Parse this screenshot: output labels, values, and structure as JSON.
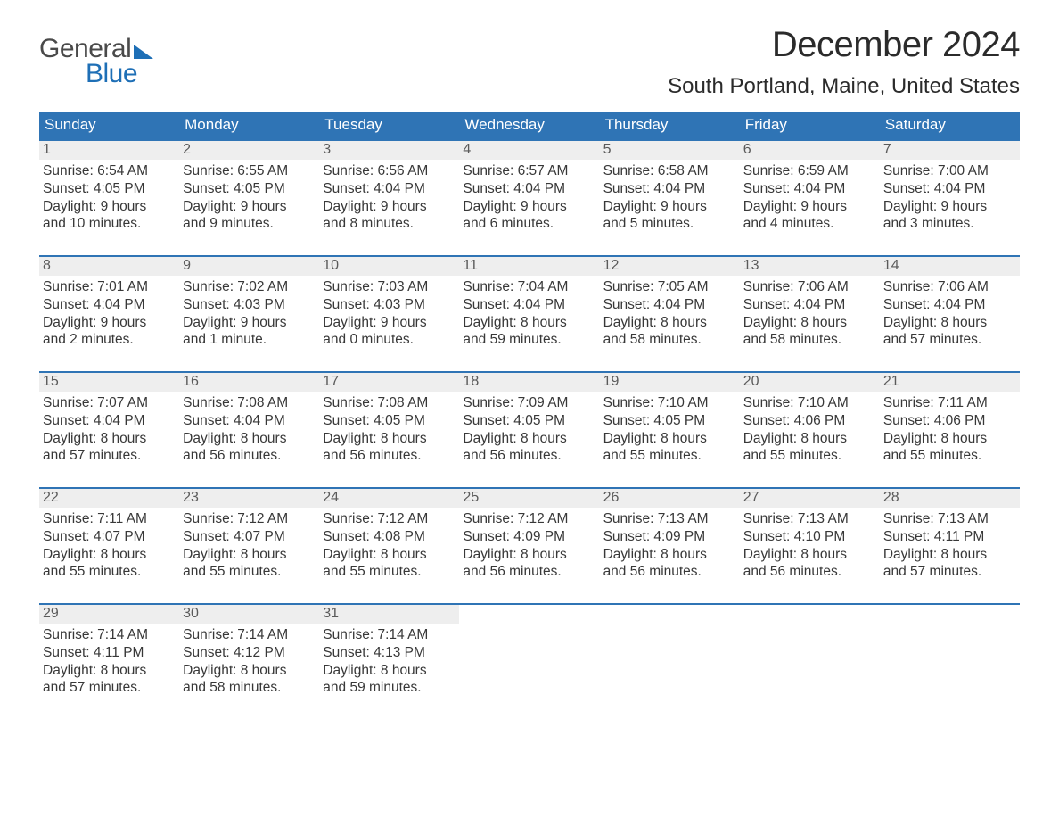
{
  "logo": {
    "word1": "General",
    "word2": "Blue"
  },
  "title": "December 2024",
  "location": "South Portland, Maine, United States",
  "colors": {
    "header_bg": "#2f74b5",
    "header_text": "#ffffff",
    "week_border": "#2f74b5",
    "daynum_bg": "#eeeeee",
    "body_text": "#383838",
    "logo_blue": "#1e6fb6"
  },
  "day_names": [
    "Sunday",
    "Monday",
    "Tuesday",
    "Wednesday",
    "Thursday",
    "Friday",
    "Saturday"
  ],
  "type": "table",
  "weeks": [
    [
      {
        "num": "1",
        "sunrise": "Sunrise: 6:54 AM",
        "sunset": "Sunset: 4:05 PM",
        "dl1": "Daylight: 9 hours",
        "dl2": "and 10 minutes."
      },
      {
        "num": "2",
        "sunrise": "Sunrise: 6:55 AM",
        "sunset": "Sunset: 4:05 PM",
        "dl1": "Daylight: 9 hours",
        "dl2": "and 9 minutes."
      },
      {
        "num": "3",
        "sunrise": "Sunrise: 6:56 AM",
        "sunset": "Sunset: 4:04 PM",
        "dl1": "Daylight: 9 hours",
        "dl2": "and 8 minutes."
      },
      {
        "num": "4",
        "sunrise": "Sunrise: 6:57 AM",
        "sunset": "Sunset: 4:04 PM",
        "dl1": "Daylight: 9 hours",
        "dl2": "and 6 minutes."
      },
      {
        "num": "5",
        "sunrise": "Sunrise: 6:58 AM",
        "sunset": "Sunset: 4:04 PM",
        "dl1": "Daylight: 9 hours",
        "dl2": "and 5 minutes."
      },
      {
        "num": "6",
        "sunrise": "Sunrise: 6:59 AM",
        "sunset": "Sunset: 4:04 PM",
        "dl1": "Daylight: 9 hours",
        "dl2": "and 4 minutes."
      },
      {
        "num": "7",
        "sunrise": "Sunrise: 7:00 AM",
        "sunset": "Sunset: 4:04 PM",
        "dl1": "Daylight: 9 hours",
        "dl2": "and 3 minutes."
      }
    ],
    [
      {
        "num": "8",
        "sunrise": "Sunrise: 7:01 AM",
        "sunset": "Sunset: 4:04 PM",
        "dl1": "Daylight: 9 hours",
        "dl2": "and 2 minutes."
      },
      {
        "num": "9",
        "sunrise": "Sunrise: 7:02 AM",
        "sunset": "Sunset: 4:03 PM",
        "dl1": "Daylight: 9 hours",
        "dl2": "and 1 minute."
      },
      {
        "num": "10",
        "sunrise": "Sunrise: 7:03 AM",
        "sunset": "Sunset: 4:03 PM",
        "dl1": "Daylight: 9 hours",
        "dl2": "and 0 minutes."
      },
      {
        "num": "11",
        "sunrise": "Sunrise: 7:04 AM",
        "sunset": "Sunset: 4:04 PM",
        "dl1": "Daylight: 8 hours",
        "dl2": "and 59 minutes."
      },
      {
        "num": "12",
        "sunrise": "Sunrise: 7:05 AM",
        "sunset": "Sunset: 4:04 PM",
        "dl1": "Daylight: 8 hours",
        "dl2": "and 58 minutes."
      },
      {
        "num": "13",
        "sunrise": "Sunrise: 7:06 AM",
        "sunset": "Sunset: 4:04 PM",
        "dl1": "Daylight: 8 hours",
        "dl2": "and 58 minutes."
      },
      {
        "num": "14",
        "sunrise": "Sunrise: 7:06 AM",
        "sunset": "Sunset: 4:04 PM",
        "dl1": "Daylight: 8 hours",
        "dl2": "and 57 minutes."
      }
    ],
    [
      {
        "num": "15",
        "sunrise": "Sunrise: 7:07 AM",
        "sunset": "Sunset: 4:04 PM",
        "dl1": "Daylight: 8 hours",
        "dl2": "and 57 minutes."
      },
      {
        "num": "16",
        "sunrise": "Sunrise: 7:08 AM",
        "sunset": "Sunset: 4:04 PM",
        "dl1": "Daylight: 8 hours",
        "dl2": "and 56 minutes."
      },
      {
        "num": "17",
        "sunrise": "Sunrise: 7:08 AM",
        "sunset": "Sunset: 4:05 PM",
        "dl1": "Daylight: 8 hours",
        "dl2": "and 56 minutes."
      },
      {
        "num": "18",
        "sunrise": "Sunrise: 7:09 AM",
        "sunset": "Sunset: 4:05 PM",
        "dl1": "Daylight: 8 hours",
        "dl2": "and 56 minutes."
      },
      {
        "num": "19",
        "sunrise": "Sunrise: 7:10 AM",
        "sunset": "Sunset: 4:05 PM",
        "dl1": "Daylight: 8 hours",
        "dl2": "and 55 minutes."
      },
      {
        "num": "20",
        "sunrise": "Sunrise: 7:10 AM",
        "sunset": "Sunset: 4:06 PM",
        "dl1": "Daylight: 8 hours",
        "dl2": "and 55 minutes."
      },
      {
        "num": "21",
        "sunrise": "Sunrise: 7:11 AM",
        "sunset": "Sunset: 4:06 PM",
        "dl1": "Daylight: 8 hours",
        "dl2": "and 55 minutes."
      }
    ],
    [
      {
        "num": "22",
        "sunrise": "Sunrise: 7:11 AM",
        "sunset": "Sunset: 4:07 PM",
        "dl1": "Daylight: 8 hours",
        "dl2": "and 55 minutes."
      },
      {
        "num": "23",
        "sunrise": "Sunrise: 7:12 AM",
        "sunset": "Sunset: 4:07 PM",
        "dl1": "Daylight: 8 hours",
        "dl2": "and 55 minutes."
      },
      {
        "num": "24",
        "sunrise": "Sunrise: 7:12 AM",
        "sunset": "Sunset: 4:08 PM",
        "dl1": "Daylight: 8 hours",
        "dl2": "and 55 minutes."
      },
      {
        "num": "25",
        "sunrise": "Sunrise: 7:12 AM",
        "sunset": "Sunset: 4:09 PM",
        "dl1": "Daylight: 8 hours",
        "dl2": "and 56 minutes."
      },
      {
        "num": "26",
        "sunrise": "Sunrise: 7:13 AM",
        "sunset": "Sunset: 4:09 PM",
        "dl1": "Daylight: 8 hours",
        "dl2": "and 56 minutes."
      },
      {
        "num": "27",
        "sunrise": "Sunrise: 7:13 AM",
        "sunset": "Sunset: 4:10 PM",
        "dl1": "Daylight: 8 hours",
        "dl2": "and 56 minutes."
      },
      {
        "num": "28",
        "sunrise": "Sunrise: 7:13 AM",
        "sunset": "Sunset: 4:11 PM",
        "dl1": "Daylight: 8 hours",
        "dl2": "and 57 minutes."
      }
    ],
    [
      {
        "num": "29",
        "sunrise": "Sunrise: 7:14 AM",
        "sunset": "Sunset: 4:11 PM",
        "dl1": "Daylight: 8 hours",
        "dl2": "and 57 minutes."
      },
      {
        "num": "30",
        "sunrise": "Sunrise: 7:14 AM",
        "sunset": "Sunset: 4:12 PM",
        "dl1": "Daylight: 8 hours",
        "dl2": "and 58 minutes."
      },
      {
        "num": "31",
        "sunrise": "Sunrise: 7:14 AM",
        "sunset": "Sunset: 4:13 PM",
        "dl1": "Daylight: 8 hours",
        "dl2": "and 59 minutes."
      },
      {
        "empty": true
      },
      {
        "empty": true
      },
      {
        "empty": true
      },
      {
        "empty": true
      }
    ]
  ]
}
